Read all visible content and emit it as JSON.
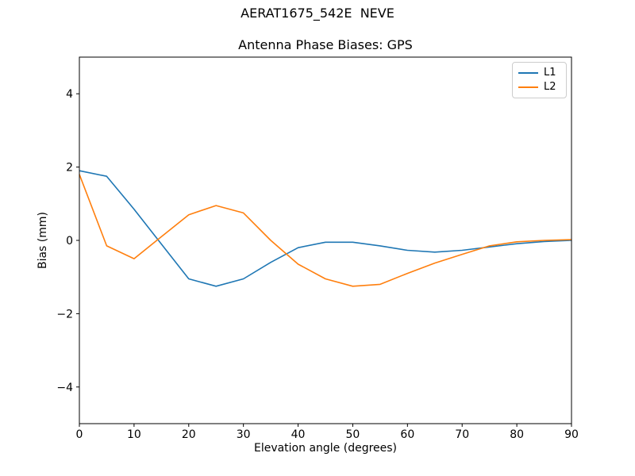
{
  "figure": {
    "suptitle": "AERAT1675_542E  NEVE"
  },
  "chart_data": {
    "type": "line",
    "title": "Antenna Phase Biases: GPS",
    "xlabel": "Elevation angle (degrees)",
    "ylabel": "Bias (mm)",
    "xlim": [
      0,
      90
    ],
    "ylim": [
      -5,
      5
    ],
    "xticks": [
      0,
      10,
      20,
      30,
      40,
      50,
      60,
      70,
      80,
      90
    ],
    "yticks": [
      -4,
      -2,
      0,
      2,
      4
    ],
    "grid": false,
    "legend_position": "upper right",
    "x": [
      0,
      5,
      10,
      15,
      20,
      25,
      30,
      35,
      40,
      45,
      50,
      55,
      60,
      65,
      70,
      75,
      80,
      85,
      90
    ],
    "series": [
      {
        "name": "L1",
        "color": "#1f77b4",
        "values": [
          1.9,
          1.75,
          0.85,
          -0.1,
          -1.05,
          -1.25,
          -1.05,
          -0.6,
          -0.2,
          -0.05,
          -0.05,
          -0.15,
          -0.27,
          -0.32,
          -0.27,
          -0.18,
          -0.09,
          -0.03,
          0.0
        ]
      },
      {
        "name": "L2",
        "color": "#ff7f0e",
        "values": [
          1.8,
          -0.15,
          -0.5,
          0.1,
          0.7,
          0.95,
          0.75,
          0.0,
          -0.65,
          -1.05,
          -1.25,
          -1.2,
          -0.9,
          -0.62,
          -0.38,
          -0.15,
          -0.04,
          0.0,
          0.02
        ]
      }
    ]
  }
}
